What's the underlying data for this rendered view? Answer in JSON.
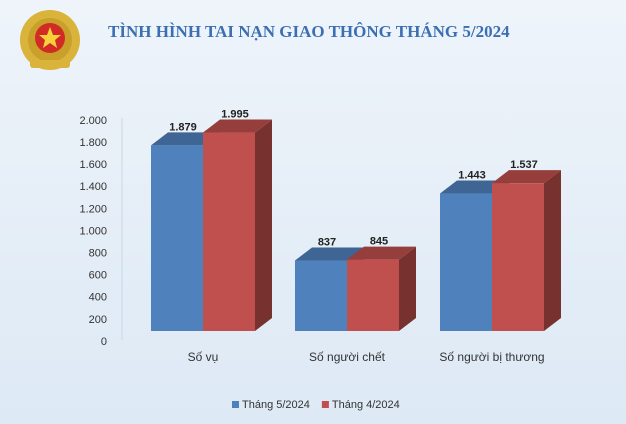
{
  "chart_data": {
    "type": "bar3d",
    "title": "TÌNH HÌNH TAI NẠN GIAO THÔNG THÁNG 5/2024",
    "categories": [
      "Số vụ",
      "Số người chết",
      "Số người bị thương"
    ],
    "series": [
      {
        "name": "Tháng 5/2024",
        "color": "#4f81bd",
        "values": [
          1879,
          837,
          1443
        ],
        "value_labels": [
          "1.879",
          "837",
          "1.443"
        ]
      },
      {
        "name": "Tháng 4/2024",
        "color": "#c0504d",
        "values": [
          1995,
          845,
          1537
        ],
        "value_labels": [
          "1.995",
          "845",
          "1.537"
        ]
      }
    ],
    "ylim": [
      0,
      2000
    ],
    "yticks": [
      0,
      200,
      400,
      600,
      800,
      {
        "value": 1000,
        "label": "1.000"
      },
      {
        "value": 1200,
        "label": "1.200"
      },
      {
        "value": 1400,
        "label": "1.400"
      },
      {
        "value": 1600,
        "label": "1.600"
      },
      {
        "value": 1800,
        "label": "1.800"
      },
      {
        "value": 2000,
        "label": "2.000"
      }
    ],
    "grid": false,
    "legend": "bottom"
  }
}
